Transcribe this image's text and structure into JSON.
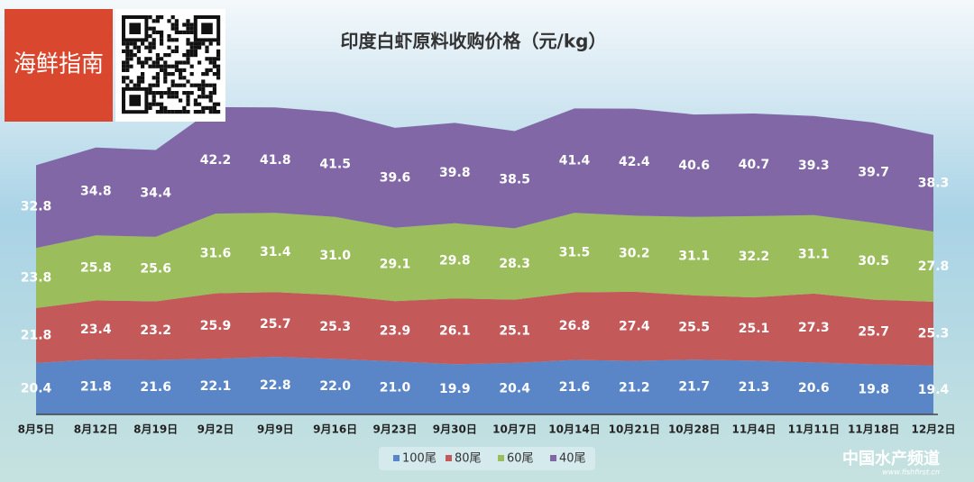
{
  "logo": "海鲜指南",
  "watermark": "中国水产频道",
  "watermark_url": "www.fishfirst.cn",
  "chart_data": {
    "type": "stacked-area",
    "title": "印度白虾原料收购价格（元/kg）",
    "categories": [
      "8月5日",
      "8月12日",
      "8月19日",
      "9月2日",
      "9月9日",
      "9月16日",
      "9月23日",
      "9月30日",
      "10月7日",
      "10月14日",
      "10月21日",
      "10月28日",
      "11月4日",
      "11月11日",
      "11月18日",
      "12月2日"
    ],
    "series": [
      {
        "name": "100尾",
        "color": "#5a86c8",
        "values": [
          20.4,
          21.8,
          21.6,
          22.1,
          22.8,
          22.0,
          21.0,
          19.9,
          20.4,
          21.6,
          21.2,
          21.7,
          21.3,
          20.6,
          19.8,
          19.4
        ],
        "value_labels": [
          "20.4",
          "21.8",
          "21.6",
          "22.1",
          "22.8",
          "22.0",
          "21.0",
          "19.9",
          "20.4",
          "21.6",
          "21.2",
          "21.7",
          "21.3",
          "20.6",
          "19.8",
          "19.4"
        ]
      },
      {
        "name": "80尾",
        "color": "#c4595a",
        "values": [
          21.8,
          23.4,
          23.2,
          25.9,
          25.7,
          25.3,
          23.9,
          26.1,
          25.1,
          26.8,
          27.4,
          25.5,
          25.1,
          27.3,
          25.7,
          25.3
        ],
        "value_labels": [
          "21.8",
          "23.4",
          "23.2",
          "25.9",
          "25.7",
          "25.3",
          "23.9",
          "26.1",
          "25.1",
          "26.8",
          "27.4",
          "25.5",
          "25.1",
          "27.3",
          "25.7",
          "25.3"
        ]
      },
      {
        "name": "60尾",
        "color": "#9bbd5b",
        "values": [
          23.8,
          25.8,
          25.6,
          31.6,
          31.4,
          31.0,
          29.1,
          29.8,
          28.3,
          31.5,
          30.2,
          31.1,
          32.2,
          31.1,
          30.5,
          27.8
        ],
        "value_labels": [
          "23.8",
          "25.8",
          "25.6",
          "31.6",
          "31.4",
          "31.0",
          "29.1",
          "29.8",
          "28.3",
          "31.5",
          "30.2",
          "31.1",
          "32.2",
          "31.1",
          "30.5",
          "27.8"
        ]
      },
      {
        "name": "40尾",
        "color": "#8167a6",
        "values": [
          32.8,
          34.8,
          34.4,
          42.2,
          41.8,
          41.5,
          39.6,
          39.8,
          38.5,
          41.4,
          42.4,
          40.6,
          40.7,
          39.3,
          39.7,
          38.3
        ],
        "value_labels": [
          "32.8",
          "34.8",
          "34.4",
          "42.2",
          "41.8",
          "41.5",
          "39.6",
          "39.8",
          "38.5",
          "41.4",
          "42.4",
          "40.6",
          "40.7",
          "39.3",
          "39.7",
          "38.3"
        ]
      }
    ]
  }
}
